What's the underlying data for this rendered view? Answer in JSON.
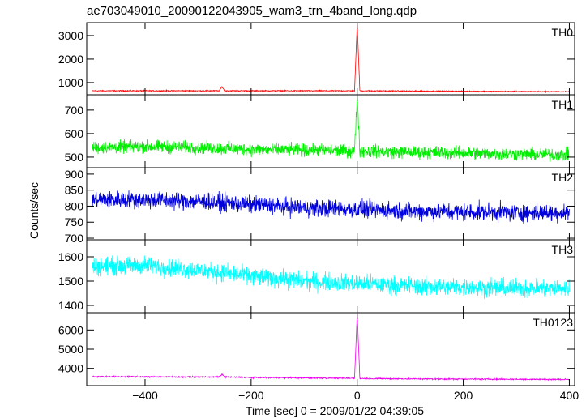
{
  "chart_data": {
    "type": "line",
    "title": "ae703049010_20090122043905_wam3_trn_4band_long.qdp",
    "xlabel": "Time [sec] 0 = 2009/01/22 04:39:05",
    "ylabel": "Counts/sec",
    "xlim": [
      -510,
      410
    ],
    "x_ticks": [
      -400,
      -200,
      0,
      200,
      400
    ],
    "x_tick_labels": [
      "−400",
      "−200",
      "0",
      "200",
      "400"
    ],
    "grid": false,
    "panels": [
      {
        "name": "TH0",
        "color": "#ff0000",
        "ylim": [
          480,
          3550
        ],
        "ticks": [
          1000,
          2000,
          3000
        ],
        "tick_labels": [
          "1000",
          "2000",
          "3000"
        ],
        "x": [
          -500,
          -400,
          -300,
          -260,
          -255,
          -250,
          -200,
          -100,
          -5,
          0,
          5,
          100,
          200,
          300,
          400
        ],
        "y": [
          650,
          650,
          650,
          650,
          830,
          650,
          650,
          650,
          650,
          3500,
          650,
          640,
          630,
          620,
          610
        ],
        "noise": 30
      },
      {
        "name": "TH1",
        "color": "#00ee00",
        "ylim": [
          455,
          765
        ],
        "ticks": [
          500,
          600,
          700
        ],
        "tick_labels": [
          "500",
          "600",
          "700"
        ],
        "x": [
          -500,
          -400,
          -300,
          -200,
          -100,
          -5,
          0,
          5,
          100,
          200,
          300,
          400
        ],
        "y": [
          540,
          545,
          540,
          532,
          530,
          525,
          760,
          525,
          520,
          518,
          512,
          510
        ],
        "noise": 40
      },
      {
        "name": "TH2",
        "color": "#0000dd",
        "ylim": [
          695,
          920
        ],
        "ticks": [
          700,
          750,
          800,
          850,
          900
        ],
        "tick_labels": [
          "700",
          "750",
          "800",
          "850",
          "900"
        ],
        "x": [
          -500,
          -400,
          -300,
          -200,
          -100,
          0,
          100,
          200,
          300,
          400
        ],
        "y": [
          820,
          820,
          815,
          805,
          795,
          790,
          785,
          782,
          780,
          780
        ],
        "noise": 40
      },
      {
        "name": "TH3",
        "color": "#00ffff",
        "ylim": [
          1370,
          1670
        ],
        "ticks": [
          1400,
          1500,
          1600
        ],
        "tick_labels": [
          "1400",
          "1500",
          "1600"
        ],
        "x": [
          -500,
          -400,
          -300,
          -200,
          -100,
          0,
          100,
          200,
          300,
          400
        ],
        "y": [
          1560,
          1565,
          1545,
          1520,
          1500,
          1490,
          1480,
          1475,
          1470,
          1470
        ],
        "noise": 55
      },
      {
        "name": "TH0123",
        "color": "#ee00ee",
        "ylim": [
          3100,
          6900
        ],
        "ticks": [
          4000,
          5000,
          6000
        ],
        "tick_labels": [
          "4000",
          "5000",
          "6000"
        ],
        "x": [
          -500,
          -400,
          -300,
          -260,
          -255,
          -250,
          -200,
          -100,
          -5,
          0,
          5,
          100,
          200,
          300,
          400
        ],
        "y": [
          3570,
          3560,
          3550,
          3550,
          3700,
          3550,
          3520,
          3500,
          3480,
          6850,
          3470,
          3450,
          3440,
          3430,
          3420
        ],
        "noise": 50
      }
    ]
  }
}
